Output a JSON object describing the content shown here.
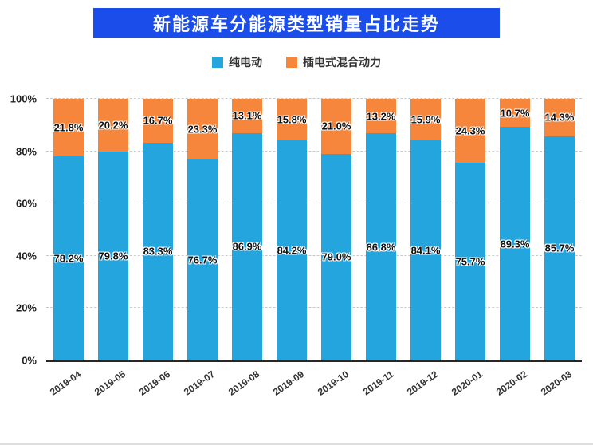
{
  "title": "新能源车分能源类型销量占比走势",
  "colors": {
    "title_bg": "#1a4de9",
    "pure_electric": "#25a5dd",
    "plug_in_hybrid": "#f5863b",
    "axis": "#262626",
    "grid": "#c9c9c9"
  },
  "legend": [
    {
      "label": "纯电动",
      "color": "#25a5dd"
    },
    {
      "label": "插电式混合动力",
      "color": "#f5863b"
    }
  ],
  "chart_data": {
    "type": "bar",
    "stacked": true,
    "title": "新能源车分能源类型销量占比走势",
    "categories": [
      "2019-04",
      "2019-05",
      "2019-06",
      "2019-07",
      "2019-08",
      "2019-09",
      "2019-10",
      "2019-11",
      "2019-12",
      "2020-01",
      "2020-02",
      "2020-03"
    ],
    "series": [
      {
        "name": "纯电动",
        "color": "#25a5dd",
        "values": [
          78.2,
          79.8,
          83.3,
          76.7,
          86.9,
          84.2,
          79.0,
          86.8,
          84.1,
          75.7,
          89.3,
          85.7
        ]
      },
      {
        "name": "插电式混合动力",
        "color": "#f5863b",
        "values": [
          21.8,
          20.2,
          16.7,
          23.3,
          13.1,
          15.8,
          21.0,
          13.2,
          15.9,
          24.3,
          10.7,
          14.3
        ]
      }
    ],
    "xlabel": "",
    "ylabel": "",
    "ylim": [
      0,
      100
    ],
    "yticks": [
      "0%",
      "20%",
      "40%",
      "60%",
      "80%",
      "100%"
    ],
    "value_suffix": "%",
    "grid": true,
    "legend_position": "top"
  }
}
